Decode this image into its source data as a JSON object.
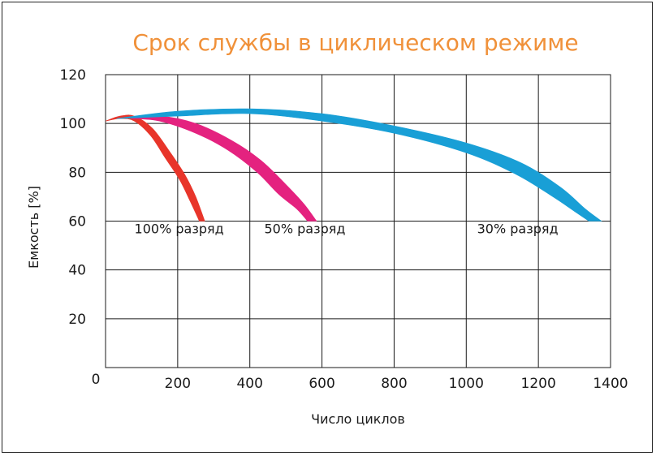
{
  "chart_data": {
    "type": "area",
    "title": "Срок службы в циклическом режиме",
    "xlabel": "Число циклов",
    "ylabel": "Емкость [%]",
    "xlim": [
      0,
      1400
    ],
    "ylim": [
      0,
      120
    ],
    "x_ticks": [
      "200",
      "400",
      "600",
      "800",
      "1000",
      "1200",
      "1400"
    ],
    "x_origin_label": "0",
    "y_ticks": [
      "20",
      "40",
      "60",
      "80",
      "100",
      "120"
    ],
    "grid": true,
    "series": [
      {
        "name": "100% разряд",
        "color": "#e8352a",
        "upper": [
          [
            0,
            101
          ],
          [
            40,
            103
          ],
          [
            80,
            103
          ],
          [
            130,
            98
          ],
          [
            180,
            88
          ],
          [
            220,
            79
          ],
          [
            250,
            70
          ],
          [
            275,
            60
          ]
        ],
        "lower": [
          [
            0,
            101
          ],
          [
            40,
            102
          ],
          [
            80,
            101
          ],
          [
            125,
            95
          ],
          [
            165,
            86
          ],
          [
            205,
            77
          ],
          [
            235,
            68
          ],
          [
            260,
            60
          ]
        ],
        "label_at": [
          80,
          57
        ]
      },
      {
        "name": "50% разряд",
        "color": "#e4227f",
        "upper": [
          [
            70,
            102
          ],
          [
            150,
            103
          ],
          [
            250,
            100
          ],
          [
            350,
            93
          ],
          [
            430,
            85
          ],
          [
            500,
            75
          ],
          [
            550,
            67
          ],
          [
            585,
            60
          ]
        ],
        "lower": [
          [
            70,
            102
          ],
          [
            150,
            101
          ],
          [
            250,
            96
          ],
          [
            340,
            89
          ],
          [
            420,
            80
          ],
          [
            480,
            71
          ],
          [
            530,
            65
          ],
          [
            560,
            60
          ]
        ],
        "label_at": [
          440,
          57
        ]
      },
      {
        "name": "30% разряд",
        "color": "#199fd6",
        "upper": [
          [
            30,
            102
          ],
          [
            200,
            105
          ],
          [
            400,
            106
          ],
          [
            600,
            104
          ],
          [
            800,
            99
          ],
          [
            1000,
            92
          ],
          [
            1150,
            84
          ],
          [
            1260,
            74
          ],
          [
            1330,
            65
          ],
          [
            1375,
            60
          ]
        ],
        "lower": [
          [
            30,
            102
          ],
          [
            200,
            103
          ],
          [
            400,
            104
          ],
          [
            600,
            101
          ],
          [
            800,
            96
          ],
          [
            1000,
            88
          ],
          [
            1140,
            79
          ],
          [
            1240,
            70
          ],
          [
            1300,
            64
          ],
          [
            1340,
            60
          ]
        ],
        "label_at": [
          1030,
          57
        ]
      }
    ]
  }
}
